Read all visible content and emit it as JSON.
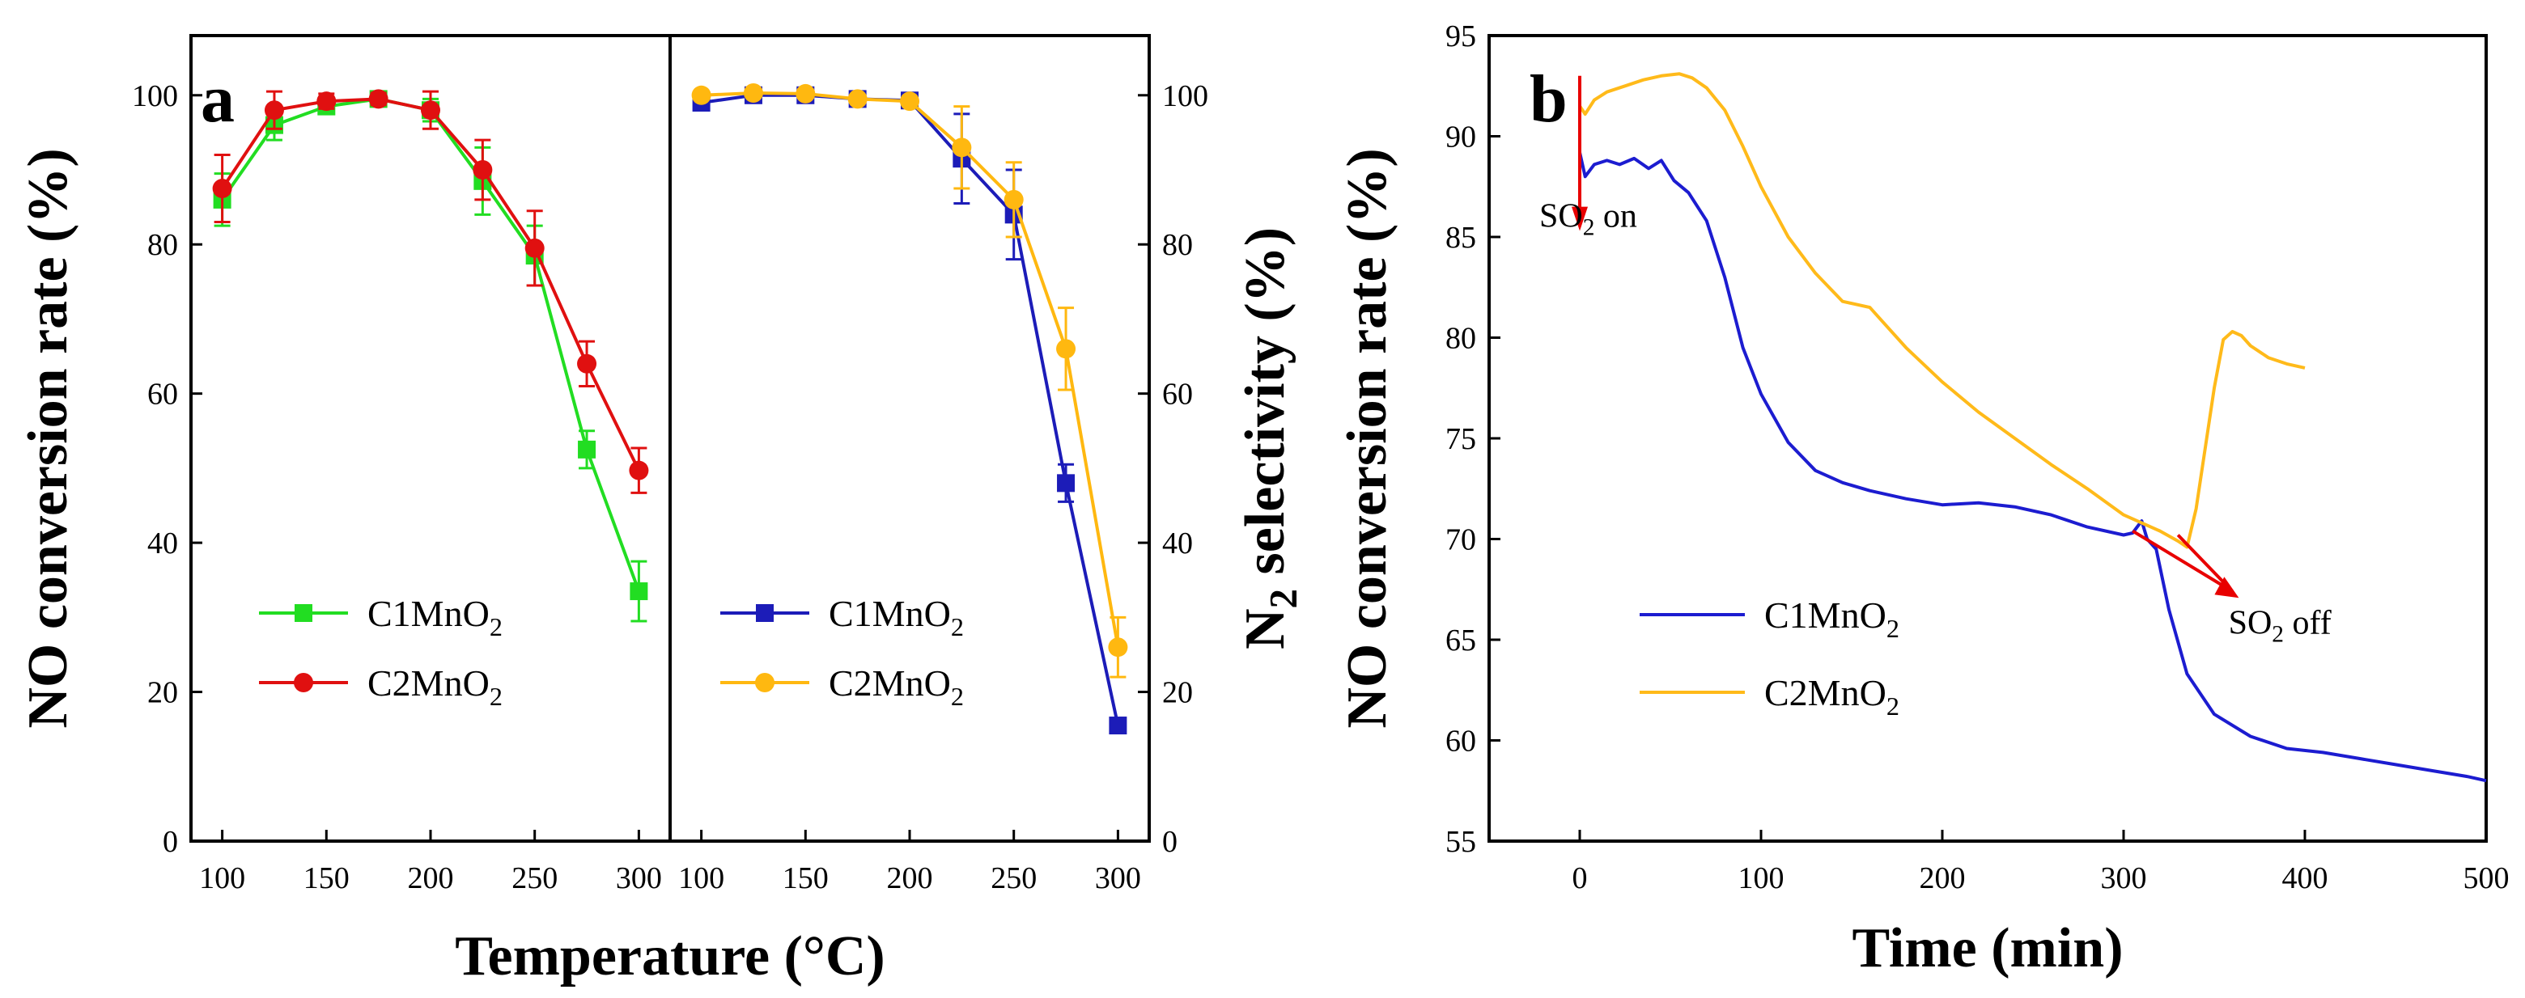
{
  "chart_data": [
    {
      "id": "a-left",
      "panel_label": "a",
      "type": "line",
      "xlabel": "Temperature (°C)",
      "ylabel": "NO conversion rate (%)",
      "xlim": [
        85,
        315
      ],
      "ylim": [
        0,
        108
      ],
      "xticks": [
        100,
        150,
        200,
        250,
        300
      ],
      "yticks": [
        0,
        20,
        40,
        60,
        80,
        100
      ],
      "x": [
        100,
        125,
        150,
        175,
        200,
        225,
        250,
        275,
        300
      ],
      "series": [
        {
          "name": "C1MnO",
          "sub": "2",
          "color": "#22dd22",
          "marker": "square",
          "values": [
            86,
            96,
            98.5,
            99.5,
            98,
            88.5,
            78.5,
            52.5,
            33.5
          ],
          "errors": [
            3.5,
            2,
            1,
            0.8,
            1.5,
            4.5,
            4,
            2.5,
            4
          ]
        },
        {
          "name": "C2MnO",
          "sub": "2",
          "color": "#e01010",
          "marker": "circle",
          "values": [
            87.5,
            98,
            99.2,
            99.5,
            98,
            90,
            79.5,
            64,
            49.7
          ],
          "errors": [
            4.5,
            2.5,
            1,
            0.8,
            2.5,
            4,
            5,
            3,
            3
          ]
        }
      ]
    },
    {
      "id": "a-right",
      "type": "line",
      "xlabel": "",
      "ylabel": "N",
      "ylabel_sub": "2",
      "ylabel_rest": " selectivity (%)",
      "xlim": [
        85,
        315
      ],
      "ylim": [
        0,
        108
      ],
      "xticks": [
        100,
        150,
        200,
        250,
        300
      ],
      "yticks": [
        0,
        20,
        40,
        60,
        80,
        100
      ],
      "x": [
        100,
        125,
        150,
        175,
        200,
        225,
        250,
        275,
        300
      ],
      "series": [
        {
          "name": "C1MnO",
          "sub": "2",
          "color": "#1c1cb8",
          "marker": "square",
          "values": [
            99,
            100,
            100,
            99.5,
            99.3,
            91.5,
            84,
            48,
            15.5
          ],
          "errors": [
            0.8,
            0.5,
            0.5,
            0.5,
            0.8,
            6,
            6,
            2.5,
            1
          ]
        },
        {
          "name": "C2MnO",
          "sub": "2",
          "color": "#ffb810",
          "marker": "circle",
          "values": [
            100,
            100.3,
            100.2,
            99.5,
            99.2,
            93,
            86,
            66,
            26
          ],
          "errors": [
            0.5,
            0.5,
            0.5,
            0.5,
            0.5,
            5.5,
            5,
            5.5,
            4
          ]
        }
      ]
    },
    {
      "id": "b",
      "panel_label": "b",
      "type": "line",
      "xlabel": "Time (min)",
      "ylabel": "NO conversion rate (%)",
      "xlim": [
        -50,
        500
      ],
      "ylim": [
        55,
        95
      ],
      "xticks": [
        0,
        100,
        200,
        300,
        400,
        500
      ],
      "yticks": [
        55,
        60,
        65,
        70,
        75,
        80,
        85,
        90,
        95
      ],
      "series": [
        {
          "name": "C1MnO",
          "sub": "2",
          "color": "#1c1cd0",
          "x": [
            0,
            3,
            8,
            15,
            22,
            30,
            38,
            45,
            52,
            60,
            70,
            80,
            90,
            100,
            115,
            130,
            145,
            160,
            180,
            200,
            220,
            240,
            260,
            280,
            300,
            305,
            310,
            313,
            318,
            325,
            335,
            350,
            370,
            390,
            410,
            430,
            450,
            470,
            490,
            500
          ],
          "y": [
            89.2,
            88.0,
            88.6,
            88.8,
            88.6,
            88.9,
            88.4,
            88.8,
            87.8,
            87.2,
            85.8,
            83.0,
            79.5,
            77.2,
            74.8,
            73.4,
            72.8,
            72.4,
            72.0,
            71.7,
            71.8,
            71.6,
            71.2,
            70.6,
            70.2,
            70.3,
            70.9,
            70.0,
            69.5,
            66.5,
            63.3,
            61.3,
            60.2,
            59.6,
            59.4,
            59.1,
            58.8,
            58.5,
            58.2,
            58.0
          ]
        },
        {
          "name": "C2MnO",
          "sub": "2",
          "color": "#ffba1a",
          "x": [
            0,
            3,
            8,
            15,
            25,
            35,
            45,
            55,
            62,
            70,
            80,
            90,
            100,
            115,
            130,
            145,
            160,
            165,
            180,
            200,
            220,
            240,
            260,
            280,
            300,
            320,
            330,
            335,
            340,
            345,
            350,
            355,
            360,
            365,
            370,
            380,
            390,
            400
          ],
          "y": [
            91.5,
            91.1,
            91.8,
            92.2,
            92.5,
            92.8,
            93.0,
            93.1,
            92.9,
            92.4,
            91.3,
            89.5,
            87.5,
            85.0,
            83.2,
            81.8,
            81.5,
            81.0,
            79.5,
            77.8,
            76.3,
            75.0,
            73.7,
            72.5,
            71.2,
            70.4,
            69.9,
            69.6,
            71.5,
            74.5,
            77.5,
            79.9,
            80.3,
            80.1,
            79.6,
            79.0,
            78.7,
            78.5
          ]
        }
      ],
      "annotations": [
        {
          "text_main": "SO",
          "text_sub": "2",
          "text_rest": " on",
          "x": 0,
          "y": 85.5
        },
        {
          "text_main": "SO",
          "text_sub": "2",
          "text_rest": " off",
          "x": 340,
          "y": 66.5
        }
      ]
    }
  ]
}
